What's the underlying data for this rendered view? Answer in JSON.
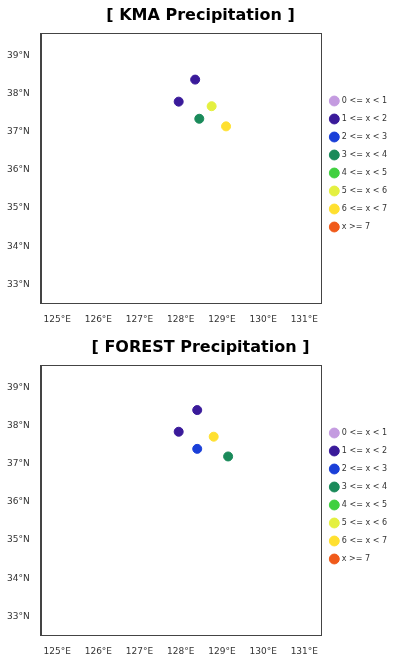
{
  "chart_data": [
    {
      "type": "scatter",
      "title": "[ KMA Precipitation ]",
      "xlim": [
        124.6,
        131.4
      ],
      "ylim": [
        32.5,
        39.6
      ],
      "xticks": [
        {
          "value": 125,
          "label": "125°E"
        },
        {
          "value": 126,
          "label": "126°E"
        },
        {
          "value": 127,
          "label": "127°E"
        },
        {
          "value": 128,
          "label": "128°E"
        },
        {
          "value": 129,
          "label": "129°E"
        },
        {
          "value": 130,
          "label": "130°E"
        },
        {
          "value": 131,
          "label": "131°E"
        }
      ],
      "yticks": [
        {
          "value": 33,
          "label": "33°N"
        },
        {
          "value": 34,
          "label": "34°N"
        },
        {
          "value": 35,
          "label": "35°N"
        },
        {
          "value": 36,
          "label": "36°N"
        },
        {
          "value": 37,
          "label": "37°N"
        },
        {
          "value": 38,
          "label": "38°N"
        },
        {
          "value": 39,
          "label": "39°N"
        }
      ],
      "grid": false,
      "legend": "right",
      "marker": "circle",
      "series": [
        {
          "name": "0 <= x < 1",
          "color": "#c49be0",
          "x": [],
          "y": []
        },
        {
          "name": "1 <= x < 2",
          "color": "#3a1a9a",
          "x": [
            128.35,
            127.95
          ],
          "y": [
            38.38,
            37.8
          ]
        },
        {
          "name": "2 <= x < 3",
          "color": "#1a3fd8",
          "x": [],
          "y": []
        },
        {
          "name": "3 <= x < 4",
          "color": "#1a8a5a",
          "x": [
            128.45
          ],
          "y": [
            37.35
          ]
        },
        {
          "name": "4 <= x < 5",
          "color": "#40d040",
          "x": [],
          "y": []
        },
        {
          "name": "5 <= x < 6",
          "color": "#e4f040",
          "x": [
            128.75
          ],
          "y": [
            37.68
          ]
        },
        {
          "name": "6 <= x < 7",
          "color": "#ffe030",
          "x": [
            129.1
          ],
          "y": [
            37.15
          ]
        },
        {
          "name": "x >= 7",
          "color": "#f05a1a",
          "x": [],
          "y": []
        }
      ]
    },
    {
      "type": "scatter",
      "title": "[ FOREST Precipitation ]",
      "xlim": [
        124.6,
        131.4
      ],
      "ylim": [
        32.5,
        39.6
      ],
      "xticks": [
        {
          "value": 125,
          "label": "125°E"
        },
        {
          "value": 126,
          "label": "126°E"
        },
        {
          "value": 127,
          "label": "127°E"
        },
        {
          "value": 128,
          "label": "128°E"
        },
        {
          "value": 129,
          "label": "129°E"
        },
        {
          "value": 130,
          "label": "130°E"
        },
        {
          "value": 131,
          "label": "131°E"
        }
      ],
      "yticks": [
        {
          "value": 33,
          "label": "33°N"
        },
        {
          "value": 34,
          "label": "34°N"
        },
        {
          "value": 35,
          "label": "35°N"
        },
        {
          "value": 36,
          "label": "36°N"
        },
        {
          "value": 37,
          "label": "37°N"
        },
        {
          "value": 38,
          "label": "38°N"
        },
        {
          "value": 39,
          "label": "39°N"
        }
      ],
      "grid": false,
      "legend": "right",
      "marker": "circle",
      "series": [
        {
          "name": "0 <= x < 1",
          "color": "#c49be0",
          "x": [],
          "y": []
        },
        {
          "name": "1 <= x < 2",
          "color": "#3a1a9a",
          "x": [
            128.4,
            127.95
          ],
          "y": [
            38.42,
            37.85
          ]
        },
        {
          "name": "2 <= x < 3",
          "color": "#1a3fd8",
          "x": [
            128.4
          ],
          "y": [
            37.4
          ]
        },
        {
          "name": "3 <= x < 4",
          "color": "#1a8a5a",
          "x": [
            129.15
          ],
          "y": [
            37.2
          ]
        },
        {
          "name": "4 <= x < 5",
          "color": "#40d040",
          "x": [],
          "y": []
        },
        {
          "name": "5 <= x < 6",
          "color": "#e4f040",
          "x": [],
          "y": []
        },
        {
          "name": "6 <= x < 7",
          "color": "#ffe030",
          "x": [
            128.8
          ],
          "y": [
            37.72
          ]
        },
        {
          "name": "x >= 7",
          "color": "#f05a1a",
          "x": [],
          "y": []
        }
      ]
    }
  ]
}
